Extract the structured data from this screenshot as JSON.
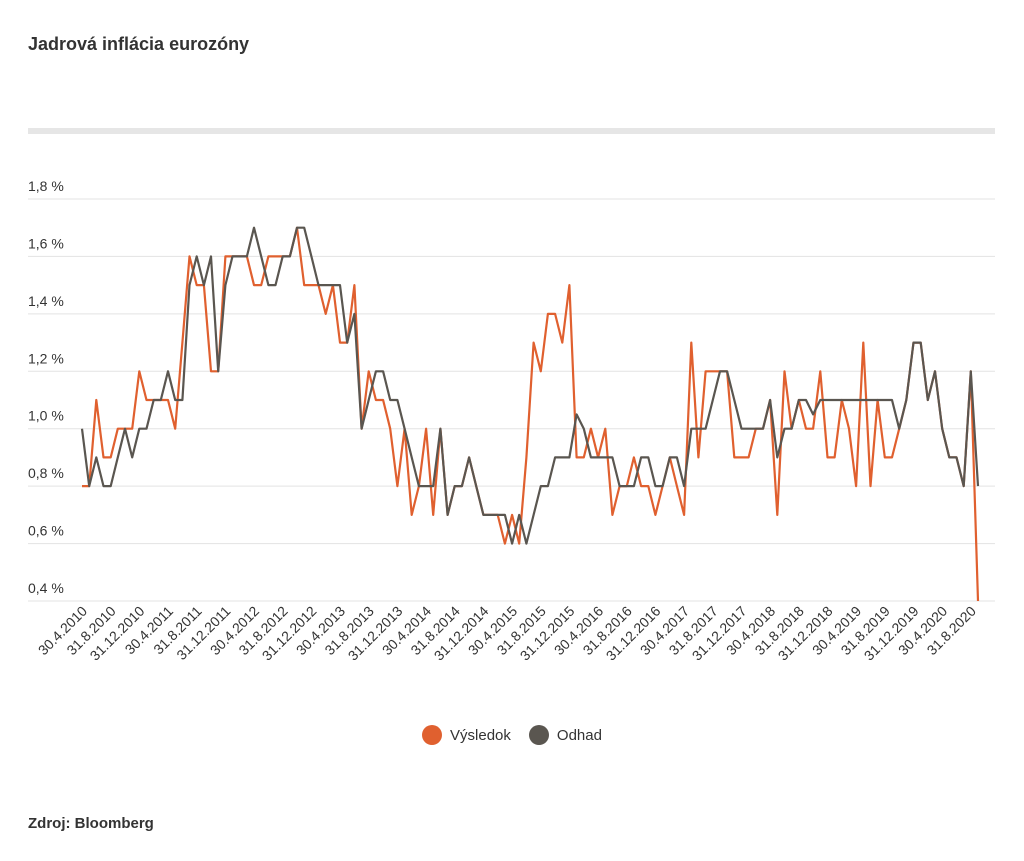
{
  "title": "Jadrová inflácia eurozóny",
  "source": "Zdroj: Bloomberg",
  "legend": [
    {
      "name": "Výsledok",
      "color": "#e0602f"
    },
    {
      "name": "Odhad",
      "color": "#5a5650"
    }
  ],
  "chart_data": {
    "type": "line",
    "ylim": [
      0.4,
      1.8
    ],
    "yticks": [
      0.4,
      0.6,
      0.8,
      1.0,
      1.2,
      1.4,
      1.6,
      1.8
    ],
    "ytick_labels": [
      "0,4 %",
      "0,6 %",
      "0,8 %",
      "1,0 %",
      "1,2 %",
      "1,4 %",
      "1,6 %",
      "1,8 %"
    ],
    "grid": true,
    "x_start": "2010-04-30",
    "x_end": "2020-09-30",
    "xtick_labels": [
      "30.4.2010",
      "31.8.2010",
      "31.12.2010",
      "30.4.2011",
      "31.8.2011",
      "31.12.2011",
      "30.4.2012",
      "31.8.2012",
      "31.12.2012",
      "30.4.2013",
      "31.8.2013",
      "31.12.2013",
      "30.4.2014",
      "31.8.2014",
      "31.12.2014",
      "30.4.2015",
      "31.8.2015",
      "31.12.2015",
      "30.4.2016",
      "31.8.2016",
      "31.12.2016",
      "30.4.2017",
      "31.8.2017",
      "31.12.2017",
      "30.4.2018",
      "31.8.2018",
      "31.12.2018",
      "30.4.2019",
      "31.8.2019",
      "31.12.2019",
      "30.4.2020",
      "31.8.2020"
    ],
    "series": [
      {
        "name": "Výsledok",
        "color": "#e0602f",
        "values": [
          0.8,
          0.8,
          1.1,
          0.9,
          0.9,
          1.0,
          1.0,
          1.0,
          1.2,
          1.1,
          1.1,
          1.1,
          1.1,
          1.0,
          1.3,
          1.6,
          1.5,
          1.5,
          1.2,
          1.2,
          1.6,
          1.6,
          1.6,
          1.6,
          1.5,
          1.5,
          1.6,
          1.6,
          1.6,
          1.6,
          1.7,
          1.5,
          1.5,
          1.5,
          1.4,
          1.5,
          1.3,
          1.3,
          1.5,
          1.0,
          1.2,
          1.1,
          1.1,
          1.0,
          0.8,
          1.0,
          0.7,
          0.8,
          1.0,
          0.7,
          1.0,
          0.7,
          0.8,
          0.8,
          0.9,
          0.8,
          0.7,
          0.7,
          0.7,
          0.6,
          0.7,
          0.6,
          0.9,
          1.3,
          1.2,
          1.4,
          1.4,
          1.3,
          1.5,
          0.9,
          0.9,
          1.0,
          0.9,
          1.0,
          0.7,
          0.8,
          0.8,
          0.9,
          0.8,
          0.8,
          0.7,
          0.8,
          0.9,
          0.8,
          0.7,
          1.3,
          0.9,
          1.2,
          1.2,
          1.2,
          1.2,
          0.9,
          0.9,
          0.9,
          1.0,
          1.0,
          1.1,
          0.7,
          1.2,
          1.0,
          1.1,
          1.0,
          1.0,
          1.2,
          0.9,
          0.9,
          1.1,
          1.0,
          0.8,
          1.3,
          0.8,
          1.1,
          0.9,
          0.9,
          1.0,
          1.1,
          1.3,
          1.3,
          1.1,
          1.2,
          1.0,
          0.9,
          0.9,
          0.8,
          1.2,
          0.4
        ]
      },
      {
        "name": "Odhad",
        "color": "#5a5650",
        "values": [
          1.0,
          0.8,
          0.9,
          0.8,
          0.8,
          0.9,
          1.0,
          0.9,
          1.0,
          1.0,
          1.1,
          1.1,
          1.2,
          1.1,
          1.1,
          1.5,
          1.6,
          1.5,
          1.6,
          1.2,
          1.5,
          1.6,
          1.6,
          1.6,
          1.7,
          1.6,
          1.5,
          1.5,
          1.6,
          1.6,
          1.7,
          1.7,
          1.6,
          1.5,
          1.5,
          1.5,
          1.5,
          1.3,
          1.4,
          1.0,
          1.1,
          1.2,
          1.2,
          1.1,
          1.1,
          1.0,
          0.9,
          0.8,
          0.8,
          0.8,
          1.0,
          0.7,
          0.8,
          0.8,
          0.9,
          0.8,
          0.7,
          0.7,
          0.7,
          0.7,
          0.6,
          0.7,
          0.6,
          0.7,
          0.8,
          0.8,
          0.9,
          0.9,
          0.9,
          1.05,
          1.0,
          0.9,
          0.9,
          0.9,
          0.9,
          0.8,
          0.8,
          0.8,
          0.9,
          0.9,
          0.8,
          0.8,
          0.9,
          0.9,
          0.8,
          1.0,
          1.0,
          1.0,
          1.1,
          1.2,
          1.2,
          1.1,
          1.0,
          1.0,
          1.0,
          1.0,
          1.1,
          0.9,
          1.0,
          1.0,
          1.1,
          1.1,
          1.05,
          1.1,
          1.1,
          1.1,
          1.1,
          1.1,
          1.1,
          1.1,
          1.1,
          1.1,
          1.1,
          1.1,
          1.0,
          1.1,
          1.3,
          1.3,
          1.1,
          1.2,
          1.0,
          0.9,
          0.9,
          0.8,
          1.2,
          0.8
        ]
      }
    ]
  }
}
